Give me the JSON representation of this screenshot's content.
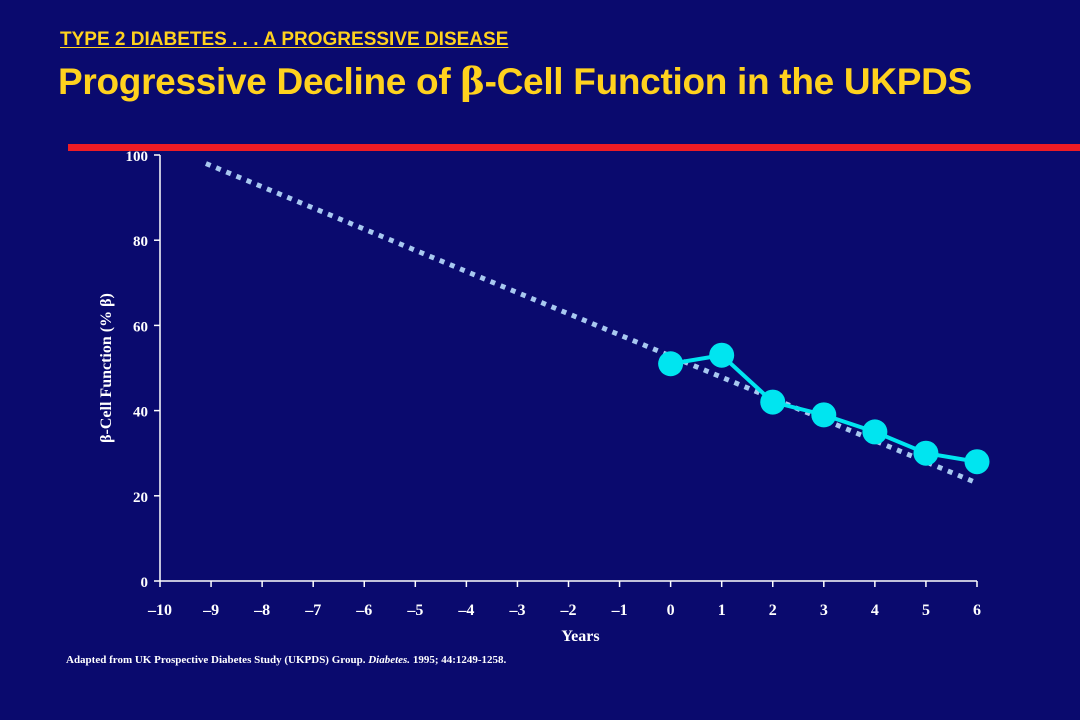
{
  "header": {
    "eyebrow": "TYPE 2 DIABETES . . . A PROGRESSIVE DISEASE",
    "title_pre": "Progressive Decline of ",
    "title_symbol": "β",
    "title_post": "-Cell Function in the UKPDS"
  },
  "colors": {
    "background": "#0a0a6e",
    "title": "#ffd21e",
    "rule": "#ee1c25",
    "observed": "#00e5f0",
    "trend": "#a8c8f0",
    "axis": "#ffffff"
  },
  "citation": {
    "prefix": "Adapted from UK Prospective Diabetes Study (UKPDS) Group. ",
    "journal": "Diabetes.",
    "suffix": " 1995; 44:1249-1258."
  },
  "chart_data": {
    "type": "line",
    "xlabel": "Years",
    "ylabel": "β-Cell Function (% β)",
    "xlim": [
      -10,
      6
    ],
    "ylim": [
      0,
      100
    ],
    "x_ticks": [
      -10,
      -9,
      -8,
      -7,
      -6,
      -5,
      -4,
      -3,
      -2,
      -1,
      0,
      1,
      2,
      3,
      4,
      5,
      6
    ],
    "x_tick_labels": [
      "–10",
      "–9",
      "–8",
      "–7",
      "–6",
      "–5",
      "–4",
      "–3",
      "–2",
      "–1",
      "0",
      "1",
      "2",
      "3",
      "4",
      "5",
      "6"
    ],
    "y_ticks": [
      0,
      20,
      40,
      60,
      80,
      100
    ],
    "y_tick_labels": [
      "0",
      "20",
      "40",
      "60",
      "80",
      "100"
    ],
    "grid": false,
    "series": [
      {
        "style": "solid-markers",
        "color": "#00e5f0",
        "x": [
          0,
          1,
          2,
          3,
          4,
          5,
          6
        ],
        "y": [
          51,
          53,
          42,
          39,
          35,
          30,
          28
        ]
      },
      {
        "style": "dotted",
        "color": "#a8c8f0",
        "x": [
          -9.1,
          6
        ],
        "y": [
          98,
          23
        ]
      }
    ]
  }
}
